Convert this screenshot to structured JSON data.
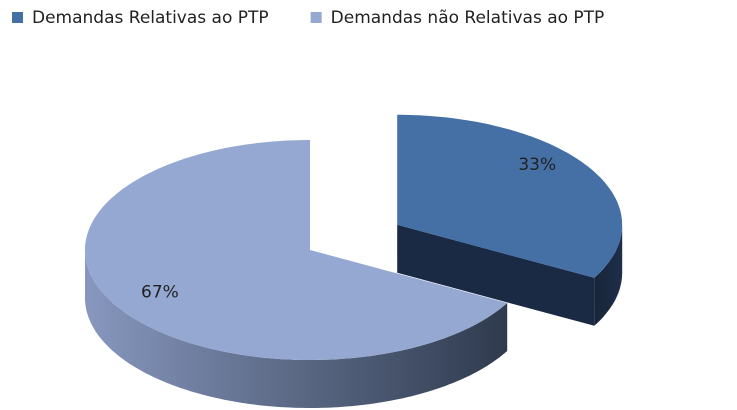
{
  "chart_data": {
    "type": "pie3d",
    "categories": [
      "Demandas Relativas ao PTP",
      "Demandas não Relativas ao PTP"
    ],
    "values": [
      33,
      67
    ],
    "value_labels": [
      "33%",
      "67%"
    ],
    "colors": [
      "#4470a6",
      "#94a8d2"
    ],
    "legend": "top"
  }
}
